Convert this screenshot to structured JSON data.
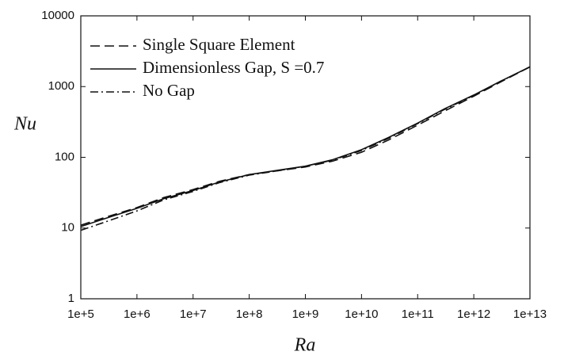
{
  "chart_data": {
    "type": "line",
    "xlabel": "Ra",
    "ylabel": "Nu",
    "xscale": "log",
    "yscale": "log",
    "xlim": [
      100000,
      10000000000000
    ],
    "ylim": [
      1,
      10000
    ],
    "xticks": [
      {
        "value": 100000,
        "label": "1e+5"
      },
      {
        "value": 1000000,
        "label": "1e+6"
      },
      {
        "value": 10000000,
        "label": "1e+7"
      },
      {
        "value": 100000000,
        "label": "1e+8"
      },
      {
        "value": 1000000000,
        "label": "1e+9"
      },
      {
        "value": 10000000000,
        "label": "1e+10"
      },
      {
        "value": 100000000000,
        "label": "1e+11"
      },
      {
        "value": 1000000000000,
        "label": "1e+12"
      },
      {
        "value": 10000000000000,
        "label": "1e+13"
      }
    ],
    "yticks": [
      1,
      10,
      100,
      1000,
      10000
    ],
    "legend": "upper left",
    "x": [
      100000,
      300000,
      1000000,
      3000000,
      10000000,
      30000000,
      100000000,
      300000000,
      1000000000,
      3000000000,
      10000000000,
      30000000000,
      100000000000,
      300000000000,
      1000000000000,
      3000000000000,
      10000000000000
    ],
    "series": [
      {
        "name": "Single Square Element",
        "color": "#111111",
        "dash": "dashed",
        "values": [
          11,
          14.5,
          19.5,
          27,
          35,
          46,
          57,
          64,
          73,
          88,
          118,
          175,
          285,
          450,
          730,
          1160,
          1900
        ]
      },
      {
        "name": "Dimensionless Gap, S =0.7",
        "color": "#111111",
        "dash": "solid",
        "values": [
          10.5,
          14,
          19,
          26,
          34,
          45,
          57,
          65,
          75,
          92,
          128,
          190,
          305,
          485,
          760,
          1190,
          1900
        ]
      },
      {
        "name": "No Gap",
        "color": "#111111",
        "dash": "dashdot",
        "values": [
          9.3,
          12.5,
          17.5,
          25,
          33,
          44,
          56,
          64,
          75,
          91,
          125,
          185,
          300,
          475,
          750,
          1180,
          1900
        ]
      }
    ]
  }
}
